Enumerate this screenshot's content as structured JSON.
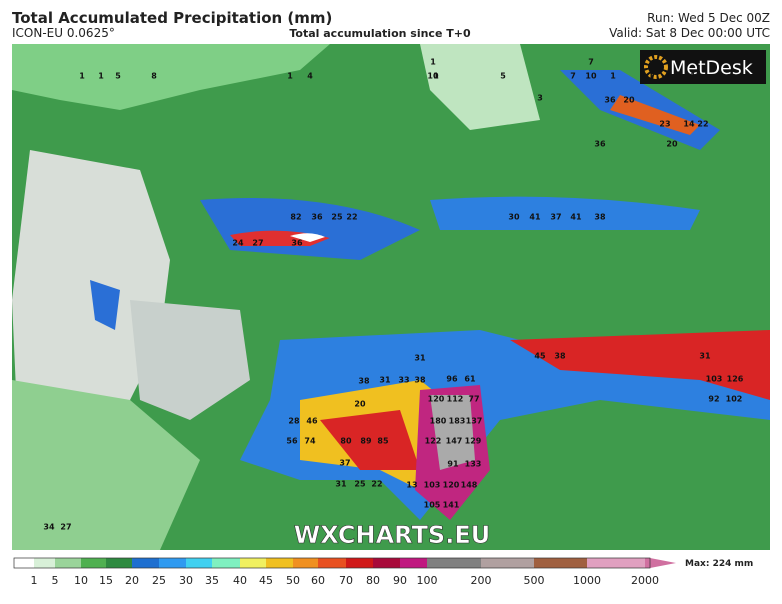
{
  "header": {
    "title": "Total Accumulated Precipitation (mm)",
    "model": "ICON-EU 0.0625°",
    "subtitle": "Total accumulation since T+0",
    "run": "Run: Wed 5 Dec 00Z",
    "valid": "Valid: Sat 8 Dec 00:00 UTC"
  },
  "logo": "MetDesk",
  "watermark": "WXCHARTS.EU",
  "colorbar": {
    "labels": [
      "1",
      "5",
      "10",
      "15",
      "20",
      "25",
      "30",
      "35",
      "40",
      "45",
      "50",
      "60",
      "70",
      "80",
      "90",
      "100",
      "200",
      "500",
      "1000",
      "2000"
    ],
    "max": "Max: 224 mm"
  },
  "map_labels": [
    "1",
    "1",
    "5",
    "8",
    "1",
    "4",
    "1",
    "1",
    "5",
    "7",
    "10",
    "1",
    "1",
    "1",
    "1",
    "10",
    "7",
    "3",
    "36",
    "20",
    "23",
    "14",
    "22",
    "20",
    "36",
    "82",
    "36",
    "25",
    "22",
    "30",
    "41",
    "37",
    "41",
    "38",
    "24",
    "27",
    "36",
    "31",
    "33",
    "38",
    "96",
    "61",
    "120",
    "112",
    "77",
    "180",
    "183",
    "137",
    "122",
    "147",
    "129",
    "103",
    "120",
    "148",
    "105",
    "141",
    "91",
    "133",
    "56",
    "74",
    "80",
    "89",
    "85",
    "28",
    "46",
    "37",
    "38",
    "31",
    "45",
    "38",
    "31",
    "103",
    "126",
    "92",
    "102",
    "34",
    "27",
    "20",
    "31",
    "25",
    "22",
    "13"
  ]
}
